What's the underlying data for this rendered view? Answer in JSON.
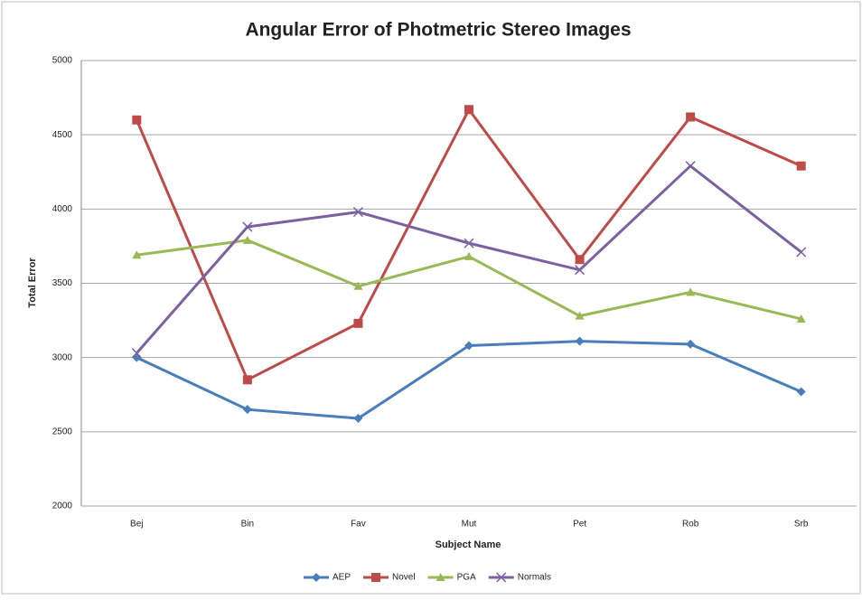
{
  "chart_data": {
    "type": "line",
    "title": "Angular Error of Photmetric Stereo Images",
    "x_label": "Subject Name",
    "y_label": "Total Error",
    "categories": [
      "Bej",
      "Bin",
      "Fav",
      "Mut",
      "Pet",
      "Rob",
      "Srb"
    ],
    "series": [
      {
        "name": "AEP",
        "color": "#4a7ebb",
        "marker": "diamond",
        "values": [
          3000,
          2650,
          2590,
          3080,
          3110,
          3090,
          2770
        ]
      },
      {
        "name": "Novel",
        "color": "#be4b48",
        "marker": "square",
        "values": [
          4600,
          2850,
          3230,
          4670,
          3660,
          4620,
          4290
        ]
      },
      {
        "name": "PGA",
        "color": "#98b954",
        "marker": "triangle",
        "values": [
          3690,
          3790,
          3480,
          3680,
          3280,
          3440,
          3260
        ]
      },
      {
        "name": "Normals",
        "color": "#7d60a0",
        "marker": "x",
        "values": [
          3030,
          3880,
          3980,
          3770,
          3590,
          4290,
          3710
        ]
      }
    ],
    "ylim": [
      2000,
      5000
    ],
    "yticks": [
      2000,
      2500,
      3000,
      3500,
      4000,
      4500,
      5000
    ],
    "grid": true,
    "legend": "bottom"
  }
}
